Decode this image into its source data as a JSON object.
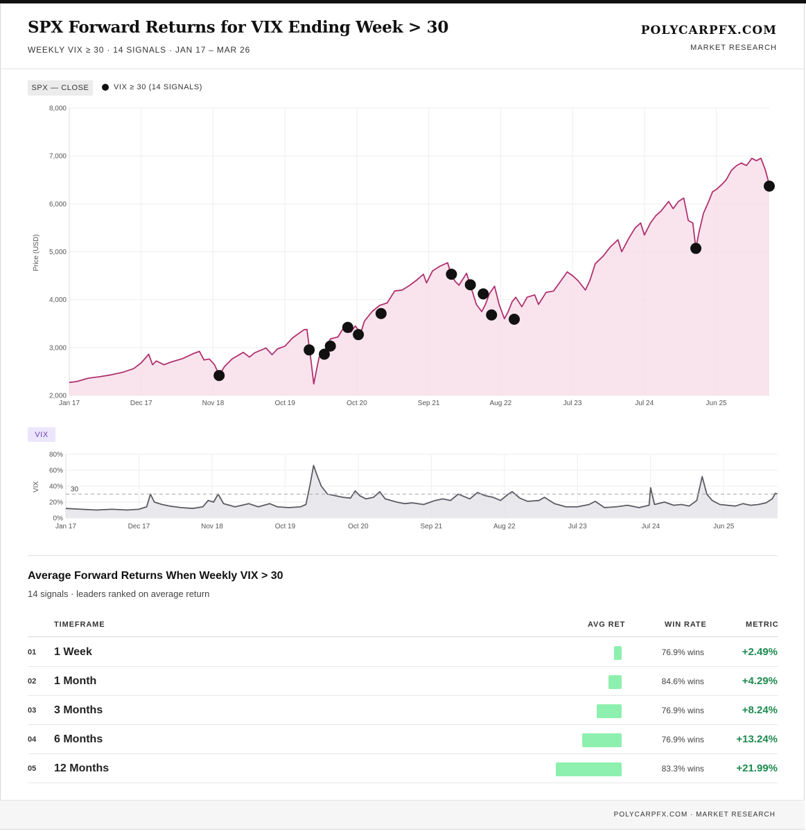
{
  "header": {
    "title": "SPX Forward Returns for VIX Ending Week > 30",
    "subtitle": "WEEKLY VIX ≥ 30 · 14 SIGNALS · JAN 17 – MAR 26",
    "brand": "POLYCARPFX.COM",
    "brand_sub": "MARKET RESEARCH"
  },
  "legend": {
    "series_label": "SPX — CLOSE",
    "signal_label": "VIX ≥ 30 (14 SIGNALS)"
  },
  "colors": {
    "spx_line": "#b0306f",
    "spx_fill": "#f7dbe7",
    "vix_line": "#5a5a62",
    "signal": "#111111",
    "bar": "#8ef0ae",
    "positive": "#1d8a4f",
    "vix_badge": "#6b3fb5"
  },
  "chart_data": [
    {
      "type": "line",
      "title": "SPX — CLOSE",
      "xlabel": "",
      "ylabel": "Price (USD)",
      "ylim": [
        2000,
        8000
      ],
      "yticks": [
        2000,
        3000,
        4000,
        5000,
        6000,
        7000,
        8000
      ],
      "ytick_labels": [
        "2,000",
        "3,000",
        "4,000",
        "5,000",
        "6,000",
        "7,000",
        "8,000"
      ],
      "xlim": [
        2017.0,
        2026.25
      ],
      "xticks": [
        {
          "label": "Jan 17",
          "t": 2017.0
        },
        {
          "label": "Dec 17",
          "t": 2017.95
        },
        {
          "label": "Nov 18",
          "t": 2018.9
        },
        {
          "label": "Oct 19",
          "t": 2019.85
        },
        {
          "label": "Oct 20",
          "t": 2020.8
        },
        {
          "label": "Sep 21",
          "t": 2021.75
        },
        {
          "label": "Aug 22",
          "t": 2022.7
        },
        {
          "label": "Jul 23",
          "t": 2023.65
        },
        {
          "label": "Jul 24",
          "t": 2024.6
        },
        {
          "label": "Jun 25",
          "t": 2025.55
        }
      ],
      "series": [
        {
          "name": "SPX",
          "points": [
            [
              2017.0,
              2270
            ],
            [
              2017.1,
              2290
            ],
            [
              2017.25,
              2360
            ],
            [
              2017.4,
              2390
            ],
            [
              2017.55,
              2430
            ],
            [
              2017.7,
              2480
            ],
            [
              2017.85,
              2560
            ],
            [
              2017.95,
              2680
            ],
            [
              2018.05,
              2860
            ],
            [
              2018.1,
              2640
            ],
            [
              2018.15,
              2720
            ],
            [
              2018.25,
              2640
            ],
            [
              2018.35,
              2700
            ],
            [
              2018.5,
              2770
            ],
            [
              2018.65,
              2880
            ],
            [
              2018.72,
              2920
            ],
            [
              2018.78,
              2740
            ],
            [
              2018.85,
              2760
            ],
            [
              2018.92,
              2640
            ],
            [
              2018.98,
              2420
            ],
            [
              2019.05,
              2600
            ],
            [
              2019.15,
              2760
            ],
            [
              2019.3,
              2900
            ],
            [
              2019.38,
              2800
            ],
            [
              2019.45,
              2890
            ],
            [
              2019.6,
              2990
            ],
            [
              2019.68,
              2850
            ],
            [
              2019.75,
              2970
            ],
            [
              2019.85,
              3030
            ],
            [
              2019.95,
              3200
            ],
            [
              2020.1,
              3370
            ],
            [
              2020.14,
              3380
            ],
            [
              2020.2,
              2650
            ],
            [
              2020.23,
              2240
            ],
            [
              2020.3,
              2790
            ],
            [
              2020.4,
              3000
            ],
            [
              2020.45,
              3180
            ],
            [
              2020.55,
              3220
            ],
            [
              2020.6,
              3350
            ],
            [
              2020.67,
              3500
            ],
            [
              2020.72,
              3320
            ],
            [
              2020.78,
              3450
            ],
            [
              2020.85,
              3300
            ],
            [
              2020.9,
              3550
            ],
            [
              2021.0,
              3750
            ],
            [
              2021.1,
              3880
            ],
            [
              2021.2,
              3930
            ],
            [
              2021.3,
              4180
            ],
            [
              2021.4,
              4200
            ],
            [
              2021.5,
              4300
            ],
            [
              2021.6,
              4420
            ],
            [
              2021.68,
              4530
            ],
            [
              2021.72,
              4350
            ],
            [
              2021.8,
              4600
            ],
            [
              2021.9,
              4700
            ],
            [
              2022.0,
              4770
            ],
            [
              2022.05,
              4500
            ],
            [
              2022.1,
              4380
            ],
            [
              2022.15,
              4300
            ],
            [
              2022.25,
              4550
            ],
            [
              2022.3,
              4300
            ],
            [
              2022.38,
              3900
            ],
            [
              2022.45,
              3750
            ],
            [
              2022.5,
              3900
            ],
            [
              2022.55,
              4120
            ],
            [
              2022.62,
              4280
            ],
            [
              2022.68,
              3900
            ],
            [
              2022.75,
              3600
            ],
            [
              2022.8,
              3750
            ],
            [
              2022.85,
              3950
            ],
            [
              2022.9,
              4050
            ],
            [
              2022.98,
              3850
            ],
            [
              2023.05,
              4050
            ],
            [
              2023.15,
              4100
            ],
            [
              2023.2,
              3900
            ],
            [
              2023.3,
              4150
            ],
            [
              2023.4,
              4180
            ],
            [
              2023.5,
              4400
            ],
            [
              2023.58,
              4580
            ],
            [
              2023.65,
              4500
            ],
            [
              2023.72,
              4400
            ],
            [
              2023.82,
              4200
            ],
            [
              2023.88,
              4400
            ],
            [
              2023.95,
              4750
            ],
            [
              2024.05,
              4900
            ],
            [
              2024.15,
              5100
            ],
            [
              2024.25,
              5250
            ],
            [
              2024.3,
              5000
            ],
            [
              2024.4,
              5300
            ],
            [
              2024.48,
              5500
            ],
            [
              2024.55,
              5600
            ],
            [
              2024.6,
              5350
            ],
            [
              2024.68,
              5600
            ],
            [
              2024.75,
              5750
            ],
            [
              2024.82,
              5850
            ],
            [
              2024.92,
              6050
            ],
            [
              2024.98,
              5900
            ],
            [
              2025.05,
              6050
            ],
            [
              2025.12,
              6120
            ],
            [
              2025.18,
              5650
            ],
            [
              2025.24,
              5600
            ],
            [
              2025.28,
              5070
            ],
            [
              2025.32,
              5400
            ],
            [
              2025.38,
              5800
            ],
            [
              2025.45,
              6050
            ],
            [
              2025.5,
              6250
            ],
            [
              2025.55,
              6300
            ],
            [
              2025.62,
              6400
            ],
            [
              2025.68,
              6500
            ],
            [
              2025.75,
              6700
            ],
            [
              2025.82,
              6800
            ],
            [
              2025.88,
              6850
            ],
            [
              2025.95,
              6800
            ],
            [
              2026.02,
              6950
            ],
            [
              2026.08,
              6900
            ],
            [
              2026.14,
              6950
            ],
            [
              2026.2,
              6700
            ],
            [
              2026.25,
              6400
            ]
          ]
        }
      ],
      "signals": [
        {
          "t": 2018.98,
          "value": 2416
        },
        {
          "t": 2020.17,
          "value": 2950
        },
        {
          "t": 2020.37,
          "value": 2860
        },
        {
          "t": 2020.45,
          "value": 3030
        },
        {
          "t": 2020.68,
          "value": 3420
        },
        {
          "t": 2020.82,
          "value": 3270
        },
        {
          "t": 2021.12,
          "value": 3710
        },
        {
          "t": 2022.05,
          "value": 4530
        },
        {
          "t": 2022.3,
          "value": 4310
        },
        {
          "t": 2022.47,
          "value": 4120
        },
        {
          "t": 2022.58,
          "value": 3680
        },
        {
          "t": 2022.88,
          "value": 3590
        },
        {
          "t": 2025.28,
          "value": 5070
        },
        {
          "t": 2026.25,
          "value": 6370
        }
      ]
    },
    {
      "type": "area",
      "title": "VIX",
      "ylabel": "VIX",
      "ylim": [
        0,
        80
      ],
      "yticks": [
        0,
        20,
        40,
        60,
        80
      ],
      "ytick_labels": [
        "0%",
        "20%",
        "40%",
        "60%",
        "80%"
      ],
      "threshold": {
        "value": 30,
        "label": "30"
      },
      "xlim": [
        2017.0,
        2026.25
      ],
      "xticks": [
        {
          "label": "Jan 17",
          "t": 2017.0
        },
        {
          "label": "Dec 17",
          "t": 2017.95
        },
        {
          "label": "Nov 18",
          "t": 2018.9
        },
        {
          "label": "Oct 19",
          "t": 2019.85
        },
        {
          "label": "Oct 20",
          "t": 2020.8
        },
        {
          "label": "Sep 21",
          "t": 2021.75
        },
        {
          "label": "Aug 22",
          "t": 2022.7
        },
        {
          "label": "Jul 23",
          "t": 2023.65
        },
        {
          "label": "Jul 24",
          "t": 2024.6
        },
        {
          "label": "Jun 25",
          "t": 2025.55
        }
      ],
      "series": [
        {
          "name": "VIX",
          "points": [
            [
              2017.0,
              12
            ],
            [
              2017.2,
              11
            ],
            [
              2017.4,
              10
            ],
            [
              2017.6,
              11
            ],
            [
              2017.8,
              10
            ],
            [
              2017.95,
              11
            ],
            [
              2018.05,
              14
            ],
            [
              2018.1,
              30
            ],
            [
              2018.15,
              20
            ],
            [
              2018.25,
              17
            ],
            [
              2018.35,
              15
            ],
            [
              2018.5,
              13
            ],
            [
              2018.65,
              12
            ],
            [
              2018.78,
              14
            ],
            [
              2018.85,
              22
            ],
            [
              2018.92,
              20
            ],
            [
              2018.98,
              30
            ],
            [
              2019.05,
              18
            ],
            [
              2019.2,
              14
            ],
            [
              2019.38,
              18
            ],
            [
              2019.5,
              14
            ],
            [
              2019.65,
              18
            ],
            [
              2019.75,
              14
            ],
            [
              2019.9,
              13
            ],
            [
              2020.05,
              14
            ],
            [
              2020.12,
              17
            ],
            [
              2020.17,
              40
            ],
            [
              2020.22,
              66
            ],
            [
              2020.26,
              55
            ],
            [
              2020.32,
              40
            ],
            [
              2020.4,
              30
            ],
            [
              2020.5,
              28
            ],
            [
              2020.6,
              26
            ],
            [
              2020.7,
              25
            ],
            [
              2020.76,
              34
            ],
            [
              2020.82,
              28
            ],
            [
              2020.9,
              24
            ],
            [
              2021.0,
              26
            ],
            [
              2021.08,
              33
            ],
            [
              2021.15,
              24
            ],
            [
              2021.3,
              20
            ],
            [
              2021.4,
              18
            ],
            [
              2021.5,
              19
            ],
            [
              2021.65,
              17
            ],
            [
              2021.8,
              22
            ],
            [
              2021.9,
              24
            ],
            [
              2022.0,
              22
            ],
            [
              2022.1,
              30
            ],
            [
              2022.15,
              28
            ],
            [
              2022.25,
              24
            ],
            [
              2022.35,
              32
            ],
            [
              2022.45,
              28
            ],
            [
              2022.55,
              26
            ],
            [
              2022.65,
              22
            ],
            [
              2022.75,
              30
            ],
            [
              2022.8,
              33
            ],
            [
              2022.9,
              25
            ],
            [
              2023.0,
              21
            ],
            [
              2023.15,
              22
            ],
            [
              2023.22,
              26
            ],
            [
              2023.35,
              18
            ],
            [
              2023.5,
              14
            ],
            [
              2023.65,
              14
            ],
            [
              2023.8,
              17
            ],
            [
              2023.88,
              21
            ],
            [
              2024.0,
              13
            ],
            [
              2024.15,
              14
            ],
            [
              2024.3,
              16
            ],
            [
              2024.45,
              13
            ],
            [
              2024.58,
              16
            ],
            [
              2024.6,
              38
            ],
            [
              2024.65,
              17
            ],
            [
              2024.78,
              20
            ],
            [
              2024.9,
              16
            ],
            [
              2025.0,
              17
            ],
            [
              2025.1,
              15
            ],
            [
              2025.2,
              22
            ],
            [
              2025.27,
              52
            ],
            [
              2025.33,
              30
            ],
            [
              2025.4,
              22
            ],
            [
              2025.5,
              17
            ],
            [
              2025.6,
              16
            ],
            [
              2025.7,
              15
            ],
            [
              2025.8,
              18
            ],
            [
              2025.9,
              16
            ],
            [
              2026.0,
              17
            ],
            [
              2026.1,
              19
            ],
            [
              2026.18,
              24
            ],
            [
              2026.22,
              31
            ],
            [
              2026.25,
              30
            ]
          ]
        }
      ]
    }
  ],
  "table": {
    "title": "Average Forward Returns When Weekly VIX > 30",
    "subtitle": "14 signals · leaders ranked on average return",
    "columns": {
      "timeframe": "TIMEFRAME",
      "avg_ret": "AVG RET",
      "win_rate": "WIN RATE",
      "metric": "METRIC"
    },
    "rows": [
      {
        "num": "01",
        "label": "1 Week",
        "avg_ret": 2.49,
        "win_rate": "76.9% wins",
        "metric": "+2.49%"
      },
      {
        "num": "02",
        "label": "1 Month",
        "avg_ret": 4.29,
        "win_rate": "84.6% wins",
        "metric": "+4.29%"
      },
      {
        "num": "03",
        "label": "3 Months",
        "avg_ret": 8.24,
        "win_rate": "76.9% wins",
        "metric": "+8.24%"
      },
      {
        "num": "04",
        "label": "6 Months",
        "avg_ret": 13.24,
        "win_rate": "76.9% wins",
        "metric": "+13.24%"
      },
      {
        "num": "05",
        "label": "12 Months",
        "avg_ret": 21.99,
        "win_rate": "83.3% wins",
        "metric": "+21.99%"
      }
    ]
  },
  "footer": {
    "text": "POLYCARPFX.COM · MARKET RESEARCH"
  }
}
